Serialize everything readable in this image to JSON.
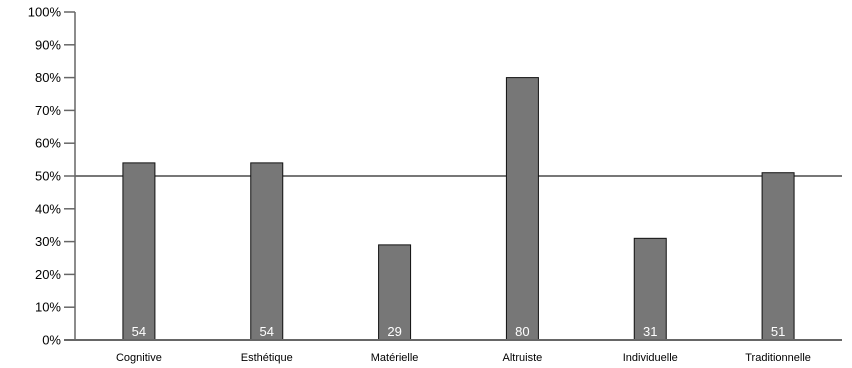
{
  "chart_data": {
    "type": "bar",
    "categories": [
      "Cognitive",
      "Esthétique",
      "Matérielle",
      "Altruiste",
      "Individuelle",
      "Traditionnelle"
    ],
    "values": [
      54,
      54,
      29,
      80,
      31,
      51
    ],
    "value_labels": [
      "54",
      "54",
      "29",
      "80",
      "31",
      "51"
    ],
    "y_ticks": [
      0,
      10,
      20,
      30,
      40,
      50,
      60,
      70,
      80,
      90,
      100
    ],
    "y_tick_labels": [
      "0%",
      "10%",
      "20%",
      "30%",
      "40%",
      "50%",
      "60%",
      "70%",
      "80%",
      "90%",
      "100%"
    ],
    "ylim": [
      0,
      100
    ],
    "reference_line": 50,
    "title": "",
    "xlabel": "",
    "ylabel": "",
    "grid": false,
    "legend": "none",
    "colors": {
      "bar_fill": "#777777",
      "bar_stroke": "#111111",
      "axis": "#666666",
      "reference_line": "#777777",
      "value_text": "#ffffff"
    }
  }
}
